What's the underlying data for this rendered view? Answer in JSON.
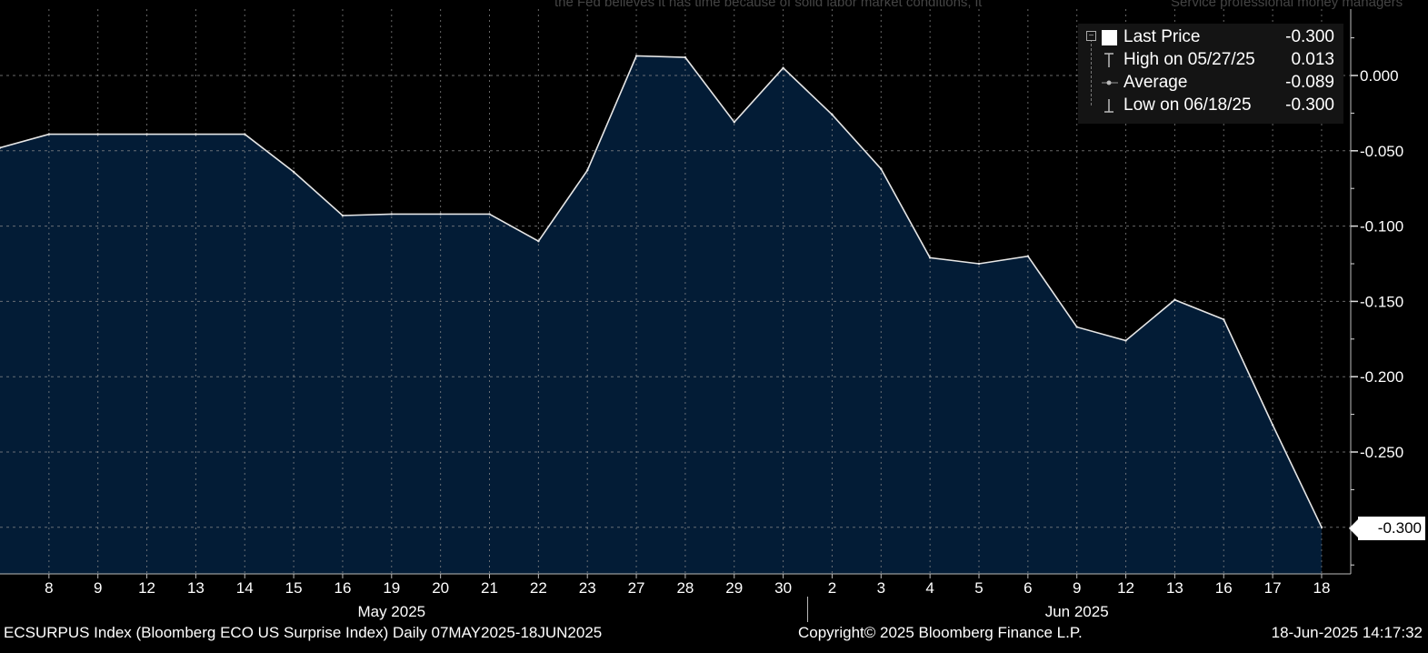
{
  "header": {
    "ghost_text_center": "the Fed believes it has time because of solid labor market conditions, it",
    "ghost_text_right": "Service professional money managers"
  },
  "legend": {
    "items": [
      {
        "label": "Last Price",
        "value": "-0.300",
        "icon": "white-square"
      },
      {
        "label": "High on 05/27/25",
        "value": "0.013",
        "icon": "high-marker"
      },
      {
        "label": "Average",
        "value": "-0.089",
        "icon": "average-marker"
      },
      {
        "label": "Low on 06/18/25",
        "value": "-0.300",
        "icon": "low-marker"
      }
    ]
  },
  "last_value_tag": "-0.300",
  "footer": {
    "left": "ECSURPUS Index (Bloomberg ECO US Surprise Index)  Daily 07MAY2025-18JUN2025",
    "center": "Copyright© 2025 Bloomberg Finance L.P.",
    "right": "18-Jun-2025 14:17:32"
  },
  "colors": {
    "background": "#000000",
    "area_fill": "#031c36",
    "line": "#e6e6e6",
    "grid": "#8a8a8a"
  },
  "chart_data": {
    "type": "area",
    "title": "",
    "xlabel": "",
    "ylabel": "",
    "x": [
      "2025-05-07",
      "2025-05-08",
      "2025-05-09",
      "2025-05-12",
      "2025-05-13",
      "2025-05-14",
      "2025-05-15",
      "2025-05-16",
      "2025-05-19",
      "2025-05-20",
      "2025-05-21",
      "2025-05-22",
      "2025-05-23",
      "2025-05-27",
      "2025-05-28",
      "2025-05-29",
      "2025-05-30",
      "2025-06-02",
      "2025-06-03",
      "2025-06-04",
      "2025-06-05",
      "2025-06-06",
      "2025-06-09",
      "2025-06-12",
      "2025-06-13",
      "2025-06-16",
      "2025-06-17",
      "2025-06-18"
    ],
    "tick_labels": [
      "8",
      "9",
      "12",
      "13",
      "14",
      "15",
      "16",
      "19",
      "20",
      "21",
      "22",
      "23",
      "27",
      "28",
      "29",
      "30",
      "2",
      "3",
      "4",
      "5",
      "6",
      "9",
      "12",
      "13",
      "16",
      "17",
      "18"
    ],
    "month_labels": [
      "May 2025",
      "Jun 2025"
    ],
    "series": [
      {
        "values": [
          -0.048,
          -0.039,
          -0.039,
          -0.039,
          -0.039,
          -0.039,
          -0.064,
          -0.093,
          -0.092,
          -0.092,
          -0.092,
          -0.11,
          -0.063,
          0.013,
          0.012,
          -0.031,
          0.005,
          -0.026,
          -0.062,
          -0.121,
          -0.125,
          -0.12,
          -0.167,
          -0.176,
          -0.149,
          -0.162,
          -0.232,
          -0.3
        ]
      }
    ],
    "yticks": [
      "0.000",
      "-0.050",
      "-0.100",
      "-0.150",
      "-0.200",
      "-0.250",
      "-0.300"
    ],
    "ylim": [
      -0.33,
      0.035
    ],
    "grid": true,
    "legend_position": "top-right"
  }
}
